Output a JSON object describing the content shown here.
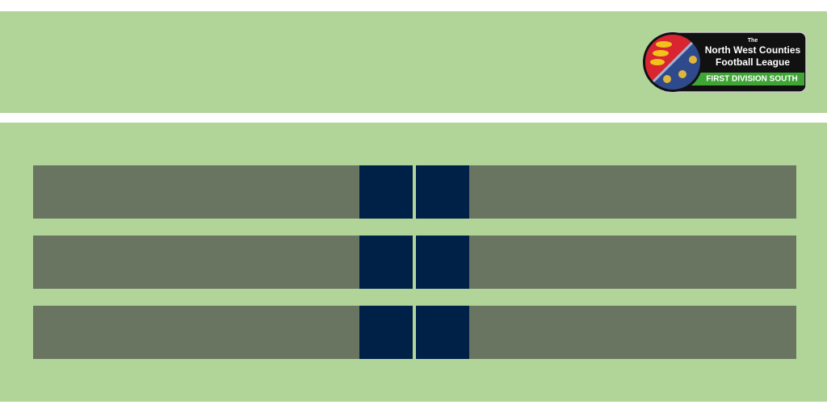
{
  "logo": {
    "small": "The",
    "line1": "North West Counties",
    "line2": "Football League",
    "division": "FIRST DIVISION SOUTH"
  }
}
